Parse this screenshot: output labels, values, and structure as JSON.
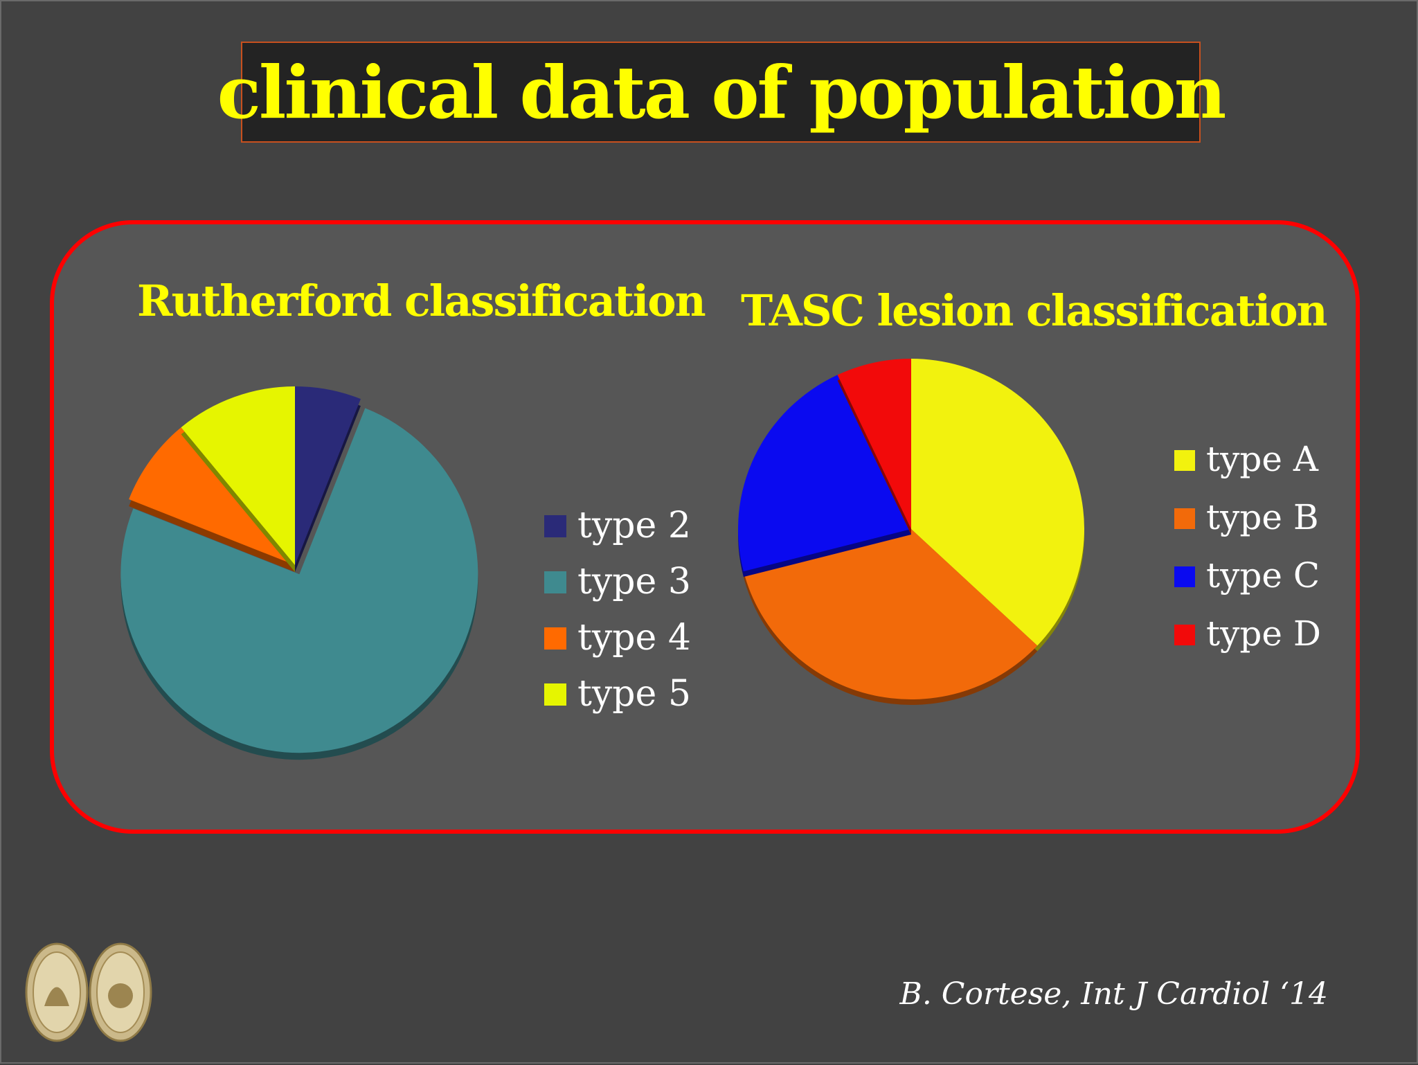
{
  "slide": {
    "title": "clinical data of population",
    "citation": "B. Cortese,  Int J Cardiol ‘14"
  },
  "colors": {
    "background": "#424242",
    "panel": "#565656",
    "panel_border": "#ff0000",
    "title_text": "#ffff00",
    "title_box_border": "#c8501e"
  },
  "chart_data": [
    {
      "type": "pie",
      "title": "Rutherford classification",
      "legend_position": "right",
      "series": [
        {
          "name": "type 2",
          "value": 6,
          "color": "#2a2a78"
        },
        {
          "name": "type 3",
          "value": 75,
          "color": "#3f8a8f"
        },
        {
          "name": "type 4",
          "value": 8,
          "color": "#ff6a00"
        },
        {
          "name": "type 5",
          "value": 11,
          "color": "#e6f500"
        }
      ],
      "exploded": "type 3"
    },
    {
      "type": "pie",
      "title": "TASC lesion classification",
      "legend_position": "right",
      "series": [
        {
          "name": "type A",
          "value": 37,
          "color": "#f2f20e"
        },
        {
          "name": "type B",
          "value": 34,
          "color": "#f26a0a"
        },
        {
          "name": "type C",
          "value": 22,
          "color": "#0a0af0"
        },
        {
          "name": "type D",
          "value": 7,
          "color": "#f20a0a"
        }
      ]
    }
  ]
}
